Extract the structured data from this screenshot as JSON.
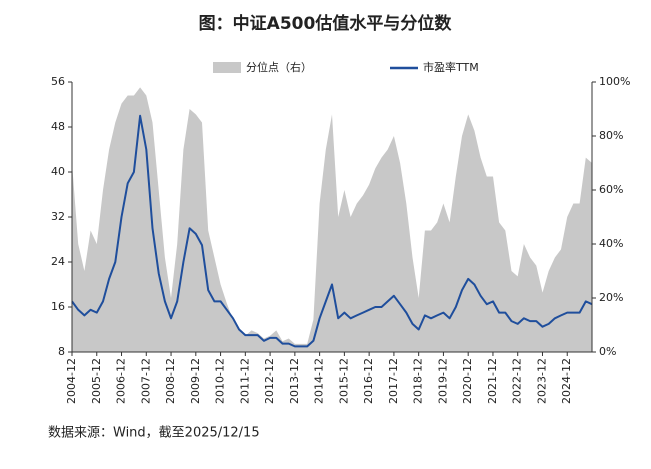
{
  "chart_data": {
    "type": "line",
    "title": "图：中证A500估值水平与分位数",
    "source": "数据来源：Wind，截至2025/12/15",
    "x": [
      "2004-12",
      "2005-03",
      "2005-06",
      "2005-09",
      "2005-12",
      "2006-03",
      "2006-06",
      "2006-09",
      "2006-12",
      "2007-03",
      "2007-06",
      "2007-09",
      "2007-12",
      "2008-03",
      "2008-06",
      "2008-09",
      "2008-12",
      "2009-03",
      "2009-06",
      "2009-09",
      "2009-12",
      "2010-03",
      "2010-06",
      "2010-09",
      "2010-12",
      "2011-03",
      "2011-06",
      "2011-09",
      "2011-12",
      "2012-03",
      "2012-06",
      "2012-09",
      "2012-12",
      "2013-03",
      "2013-06",
      "2013-09",
      "2013-12",
      "2014-03",
      "2014-06",
      "2014-09",
      "2014-12",
      "2015-03",
      "2015-06",
      "2015-09",
      "2015-12",
      "2016-03",
      "2016-06",
      "2016-09",
      "2016-12",
      "2017-03",
      "2017-06",
      "2017-09",
      "2017-12",
      "2018-03",
      "2018-06",
      "2018-09",
      "2018-12",
      "2019-03",
      "2019-06",
      "2019-09",
      "2019-12",
      "2020-03",
      "2020-06",
      "2020-09",
      "2020-12",
      "2021-03",
      "2021-06",
      "2021-09",
      "2021-12",
      "2022-03",
      "2022-06",
      "2022-09",
      "2022-12",
      "2023-03",
      "2023-06",
      "2023-09",
      "2023-12",
      "2024-03",
      "2024-06",
      "2024-09",
      "2024-12",
      "2025-03",
      "2025-06",
      "2025-09",
      "2025-12"
    ],
    "series": [
      {
        "name": "分位点（右）",
        "color": "#c8c8c8",
        "axis": "y2",
        "kind": "area",
        "values": [
          70,
          40,
          30,
          45,
          40,
          60,
          75,
          85,
          92,
          95,
          95,
          98,
          95,
          85,
          60,
          35,
          20,
          40,
          75,
          90,
          88,
          85,
          45,
          35,
          25,
          18,
          12,
          8,
          6,
          8,
          7,
          5,
          6,
          8,
          4,
          5,
          3,
          3,
          3,
          12,
          55,
          75,
          88,
          50,
          60,
          50,
          55,
          58,
          62,
          68,
          72,
          75,
          80,
          70,
          55,
          35,
          20,
          45,
          45,
          48,
          55,
          48,
          65,
          80,
          88,
          82,
          72,
          65,
          65,
          48,
          45,
          30,
          28,
          40,
          35,
          32,
          22,
          30,
          35,
          38,
          50,
          55,
          55,
          72,
          70
        ]
      },
      {
        "name": "市盈率TTM",
        "color": "#1f4e9c",
        "kind": "line",
        "values": [
          17,
          15.5,
          14.5,
          15.5,
          15,
          17,
          21,
          24,
          32,
          38,
          40,
          50,
          44,
          30,
          22,
          17,
          14,
          17,
          24,
          30,
          29,
          27,
          19,
          17,
          17,
          15.5,
          14,
          12,
          11,
          11,
          11,
          10,
          10.5,
          10.5,
          9.5,
          9.5,
          9,
          9,
          9,
          10,
          14,
          17,
          20,
          14,
          15,
          14,
          14.5,
          15,
          15.5,
          16,
          16,
          17,
          18,
          16.5,
          15,
          13,
          12,
          14.5,
          14,
          14.5,
          15,
          14,
          16,
          19,
          21,
          20,
          18,
          16.5,
          17,
          15,
          15,
          13.5,
          13,
          14,
          13.5,
          13.5,
          12.5,
          13,
          14,
          14.5,
          15,
          15,
          15,
          17,
          16.5
        ]
      }
    ],
    "xlim": [
      "2004-12",
      "2025-12"
    ],
    "xticks": [
      "2004-12",
      "2005-12",
      "2006-12",
      "2007-12",
      "2008-12",
      "2009-12",
      "2010-12",
      "2011-12",
      "2012-12",
      "2013-12",
      "2014-12",
      "2015-12",
      "2016-12",
      "2017-12",
      "2018-12",
      "2019-12",
      "2020-12",
      "2021-12",
      "2022-12",
      "2023-12",
      "2024-12"
    ],
    "ylim": [
      8,
      56
    ],
    "yticks": [
      8,
      16,
      24,
      32,
      40,
      48,
      56
    ],
    "y2lim": [
      0,
      100
    ],
    "y2ticks": [
      {
        "value": 0,
        "label": "0%"
      },
      {
        "value": 20,
        "label": "20%"
      },
      {
        "value": 40,
        "label": "40%"
      },
      {
        "value": 60,
        "label": "60%"
      },
      {
        "value": 80,
        "label": "80%"
      },
      {
        "value": 100,
        "label": "100%"
      }
    ]
  }
}
